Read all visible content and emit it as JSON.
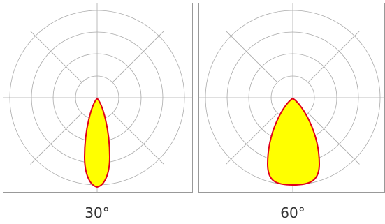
{
  "panels": [
    {
      "label": "30°"
    },
    {
      "label": "60°"
    }
  ]
}
